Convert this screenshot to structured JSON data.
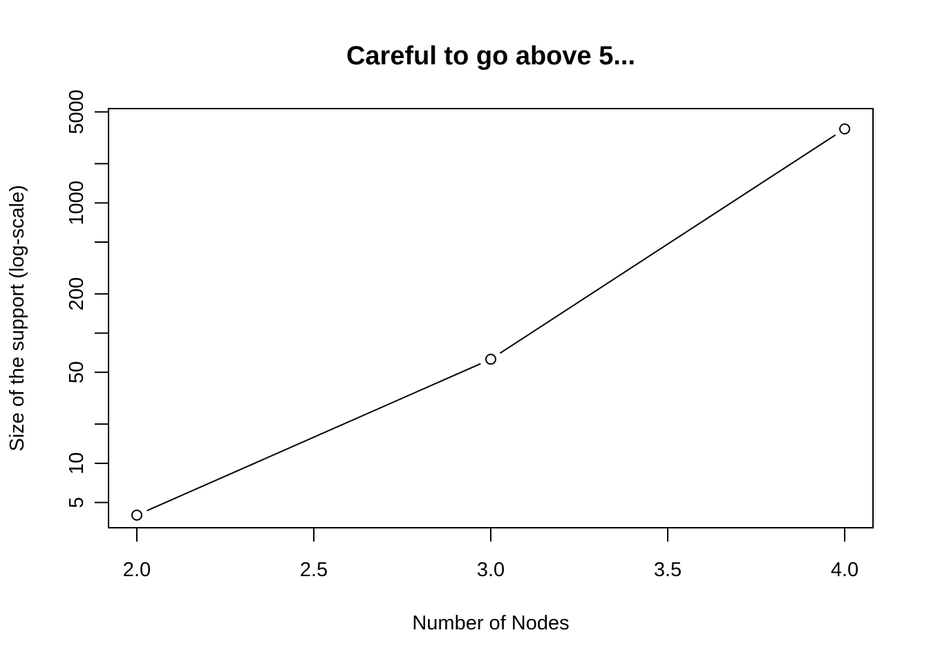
{
  "chart_data": {
    "type": "line",
    "title": "Careful to go above 5...",
    "xlabel": "Number of Nodes",
    "ylabel": "Size of the support (log-scale)",
    "x": [
      2,
      3,
      4
    ],
    "series": [
      {
        "values": [
          4,
          63,
          3700
        ]
      }
    ],
    "xlim": [
      1.92,
      4.08
    ],
    "ylim": [
      3.2,
      5300
    ],
    "ylog": true,
    "x_ticks": [
      2.0,
      2.5,
      3.0,
      3.5,
      4.0
    ],
    "x_tick_labels": [
      "2.0",
      "2.5",
      "3.0",
      "3.5",
      "4.0"
    ],
    "y_ticks": [
      5,
      10,
      20,
      50,
      100,
      200,
      500,
      1000,
      2000,
      5000
    ],
    "y_tick_labels": [
      "5",
      "10",
      "",
      "50",
      "",
      "200",
      "",
      "1000",
      "",
      "5000"
    ],
    "grid": false,
    "markers": "open-circle",
    "line_style": "b"
  }
}
